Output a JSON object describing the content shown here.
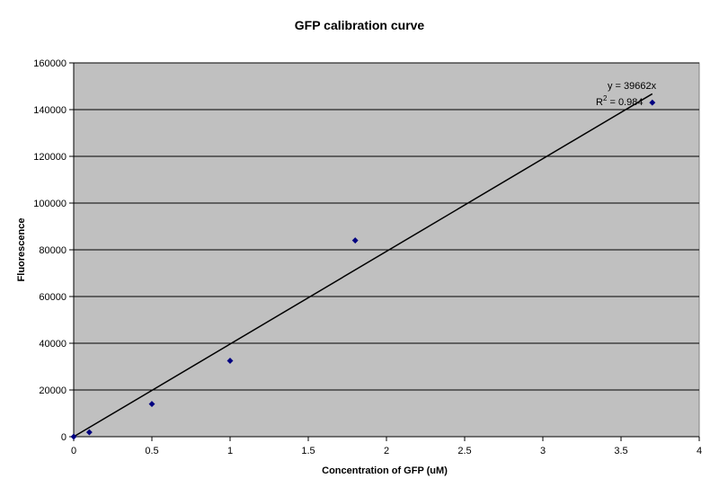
{
  "chart_data": {
    "type": "scatter",
    "title": "GFP calibration curve",
    "xlabel": "Concentration of GFP (uM)",
    "ylabel": "Fluorescence",
    "xlim": [
      0,
      4
    ],
    "ylim": [
      0,
      160000
    ],
    "x_ticks": [
      "0",
      "0.5",
      "1",
      "1.5",
      "2",
      "2.5",
      "3",
      "3.5",
      "4"
    ],
    "y_ticks": [
      "0",
      "20000",
      "40000",
      "60000",
      "80000",
      "100000",
      "120000",
      "140000",
      "160000"
    ],
    "grid": "horizontal",
    "legend": "none",
    "plot_background": "#c0c0c0",
    "series": [
      {
        "marker": "diamond",
        "color": "#000080",
        "points": [
          {
            "x": 0,
            "y": 0
          },
          {
            "x": 0.1,
            "y": 1900
          },
          {
            "x": 0.5,
            "y": 14000
          },
          {
            "x": 1,
            "y": 32500
          },
          {
            "x": 1.8,
            "y": 84000
          },
          {
            "x": 3.7,
            "y": 143000
          }
        ]
      }
    ],
    "trendline": {
      "type": "linear",
      "slope": 39662,
      "intercept": 0,
      "x_start": 0,
      "x_end": 3.7,
      "color": "#000000",
      "equation": "y = 39662x",
      "r2_prefix": "R",
      "r2_exponent": "2",
      "r2_suffix": " = 0.984"
    }
  }
}
